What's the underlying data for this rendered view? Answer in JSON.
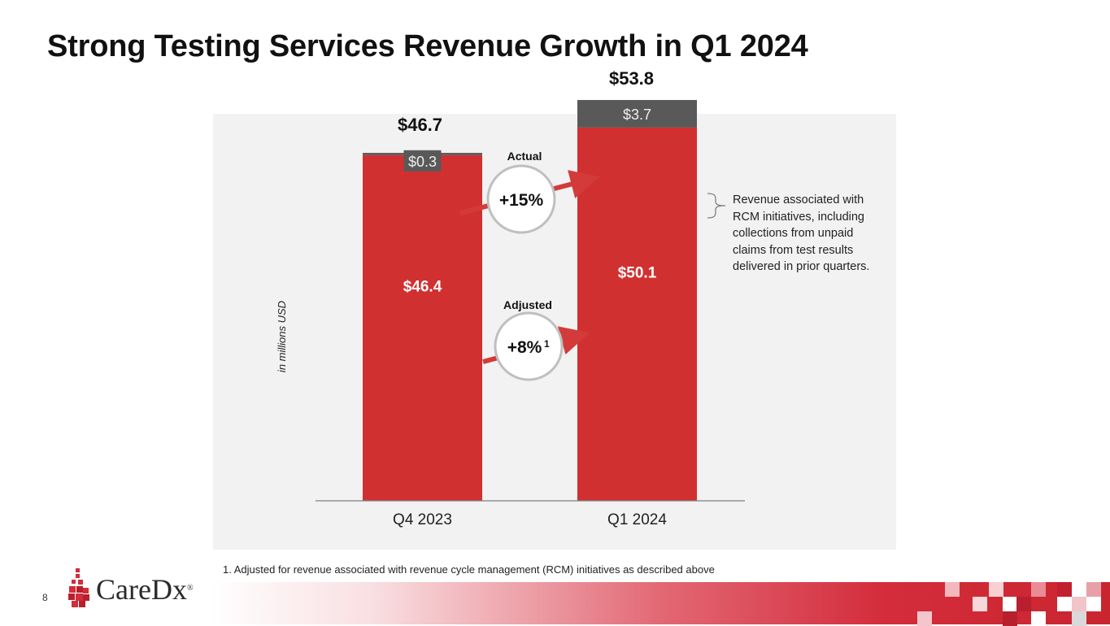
{
  "page": {
    "title": "Strong Testing Services Revenue Growth in Q1 2024",
    "footnote": "1. Adjusted for revenue associated with revenue cycle management (RCM) initiatives as described above",
    "page_number": "8",
    "logo_text": "CareDx",
    "logo_mark": "®"
  },
  "colors": {
    "core_bar": "#d13030",
    "rcm_bar": "#595959",
    "panel_bg": "#f2f2f2",
    "arrow": "#d33b3b"
  },
  "chart_data": {
    "type": "bar",
    "stacked": true,
    "title": "",
    "ylabel": "in millions USD",
    "xlabel": "",
    "categories": [
      "Q4 2023",
      "Q1 2024"
    ],
    "series": [
      {
        "name": "Adjusted revenue",
        "values": [
          46.4,
          50.1
        ],
        "labels": [
          "$46.4",
          "$50.1"
        ]
      },
      {
        "name": "RCM initiatives revenue",
        "values": [
          0.3,
          3.7
        ],
        "labels": [
          "$0.3",
          "$3.7"
        ]
      }
    ],
    "totals": [
      46.7,
      53.8
    ],
    "total_labels": [
      "$46.7",
      "$53.8"
    ],
    "ylim": [
      0,
      55
    ],
    "grid": false,
    "annotations": {
      "actual_label": "Actual",
      "actual_growth": "+15%",
      "adjusted_label": "Adjusted",
      "adjusted_growth": "+8%",
      "adjusted_footnote_ref": "1",
      "bracket_note": "Revenue associated with RCM initiatives, including collections from unpaid claims from test results delivered in prior quarters."
    }
  }
}
